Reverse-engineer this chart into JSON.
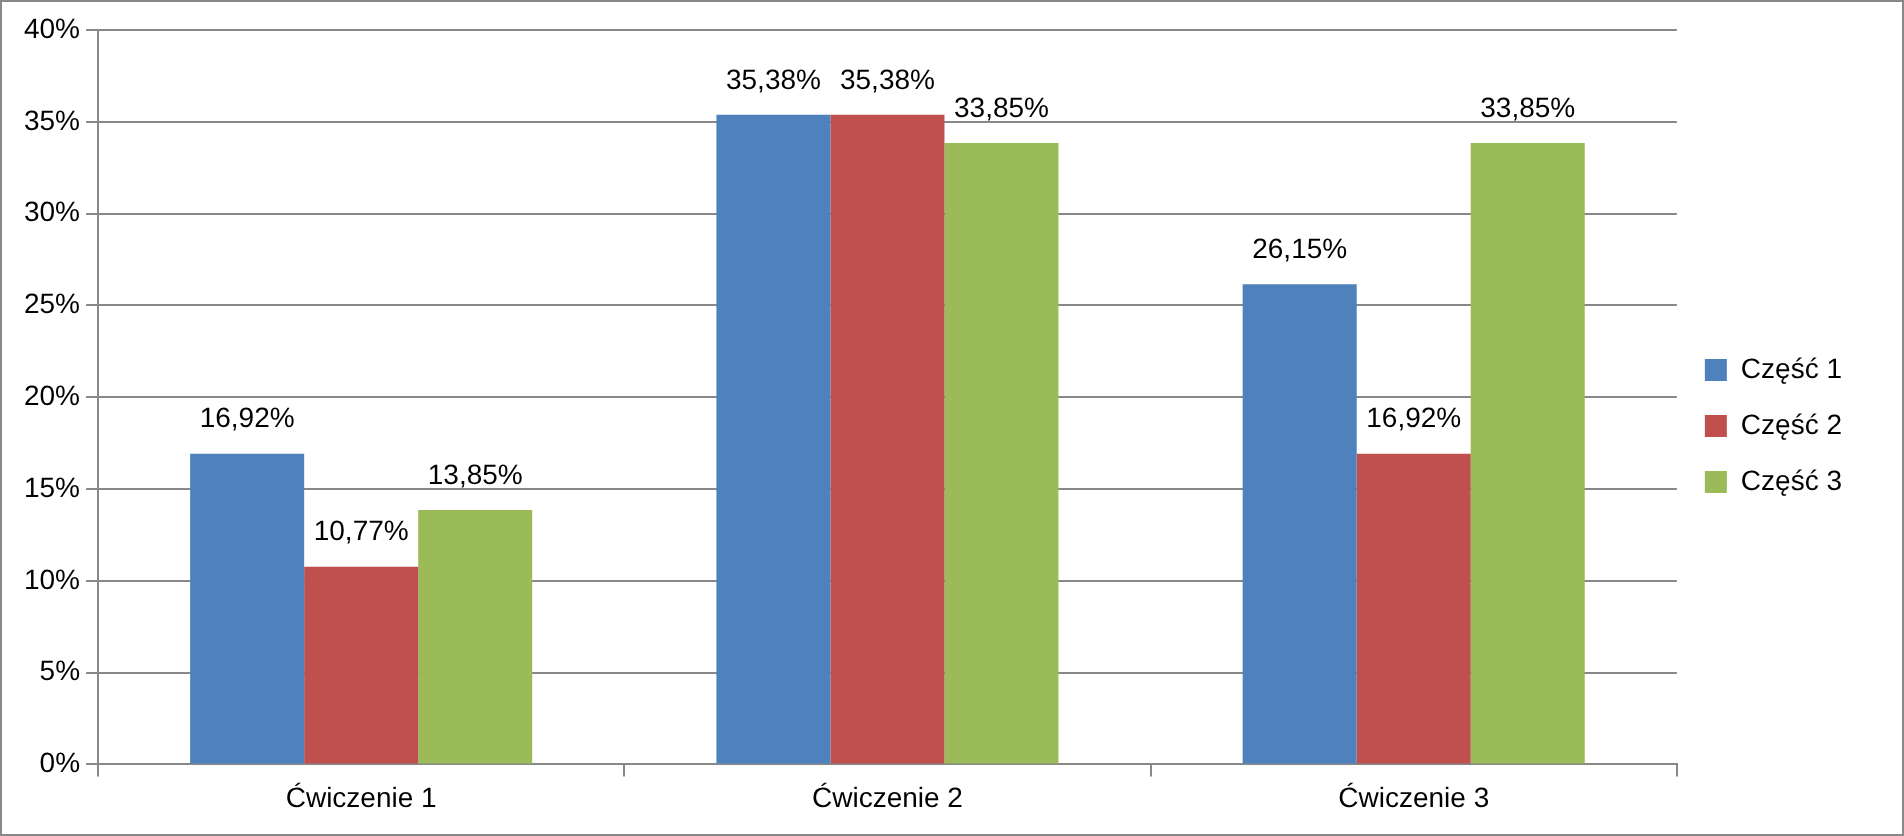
{
  "chart_data": {
    "type": "bar",
    "categories": [
      "Ćwiczenie 1",
      "Ćwiczenie 2",
      "Ćwiczenie 3"
    ],
    "series": [
      {
        "name": "Część 1",
        "color": "#4f81bd",
        "values": [
          16.92,
          35.38,
          26.15
        ],
        "value_labels": [
          "16,92%",
          "35,38%",
          "26,15%"
        ]
      },
      {
        "name": "Część 2",
        "color": "#c0504d",
        "values": [
          10.77,
          35.38,
          16.92
        ],
        "value_labels": [
          "10,77%",
          "35,38%",
          "16,92%"
        ]
      },
      {
        "name": "Część 3",
        "color": "#9bbb59",
        "values": [
          13.85,
          33.85,
          33.85
        ],
        "value_labels": [
          "13,85%",
          "33,85%",
          "33,85%"
        ]
      }
    ],
    "ylim": [
      0,
      40
    ],
    "yticks": [
      {
        "value": 0,
        "label": "0%"
      },
      {
        "value": 5,
        "label": "5%"
      },
      {
        "value": 10,
        "label": "10%"
      },
      {
        "value": 15,
        "label": "15%"
      },
      {
        "value": 20,
        "label": "20%"
      },
      {
        "value": 25,
        "label": "25%"
      },
      {
        "value": 30,
        "label": "30%"
      },
      {
        "value": 35,
        "label": "35%"
      },
      {
        "value": 40,
        "label": "40%"
      }
    ],
    "grid": "y",
    "legend": "right"
  }
}
